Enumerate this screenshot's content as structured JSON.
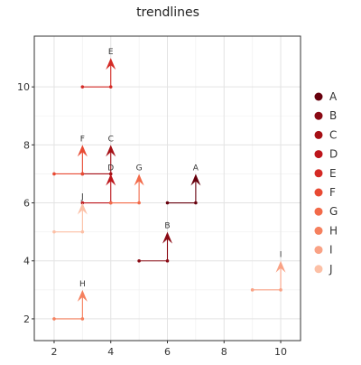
{
  "chart_data": {
    "type": "line",
    "title": "trendlines",
    "xlabel": "",
    "ylabel": "",
    "xlim": [
      1.3,
      10.7
    ],
    "ylim": [
      1.25,
      11.75
    ],
    "x_ticks": [
      2,
      4,
      6,
      8,
      10
    ],
    "y_ticks": [
      2,
      4,
      6,
      8,
      10
    ],
    "grid": true,
    "legend_position": "right",
    "series": [
      {
        "name": "A",
        "color": "#67000d",
        "points": [
          [
            6,
            6
          ],
          [
            7,
            6
          ],
          [
            7,
            7
          ]
        ]
      },
      {
        "name": "B",
        "color": "#8a0a14",
        "points": [
          [
            5,
            4
          ],
          [
            6,
            4
          ],
          [
            6,
            5
          ]
        ]
      },
      {
        "name": "C",
        "color": "#a50f15",
        "points": [
          [
            3,
            7
          ],
          [
            4,
            7
          ],
          [
            4,
            8
          ]
        ]
      },
      {
        "name": "D",
        "color": "#bd151b",
        "points": [
          [
            3,
            6
          ],
          [
            4,
            6
          ],
          [
            4,
            7
          ]
        ]
      },
      {
        "name": "E",
        "color": "#d42a25",
        "points": [
          [
            3,
            10
          ],
          [
            4,
            10
          ],
          [
            4,
            11
          ]
        ]
      },
      {
        "name": "F",
        "color": "#e84a33",
        "points": [
          [
            2,
            7
          ],
          [
            3,
            7
          ],
          [
            3,
            8
          ]
        ]
      },
      {
        "name": "G",
        "color": "#f26a49",
        "points": [
          [
            4,
            6
          ],
          [
            5,
            6
          ],
          [
            5,
            7
          ]
        ]
      },
      {
        "name": "H",
        "color": "#f5805e",
        "points": [
          [
            2,
            2
          ],
          [
            3,
            2
          ],
          [
            3,
            3
          ]
        ]
      },
      {
        "name": "I",
        "color": "#f9a285",
        "points": [
          [
            9,
            3
          ],
          [
            10,
            3
          ],
          [
            10,
            4
          ]
        ]
      },
      {
        "name": "J",
        "color": "#fcc0a6",
        "points": [
          [
            2,
            5
          ],
          [
            3,
            5
          ],
          [
            3,
            6
          ]
        ]
      }
    ]
  }
}
